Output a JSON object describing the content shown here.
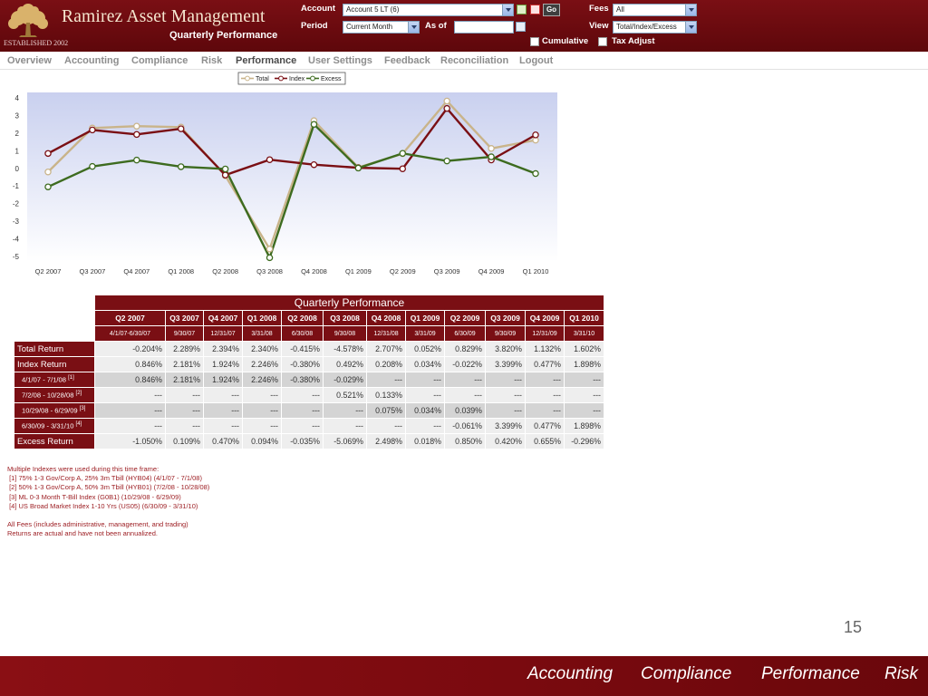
{
  "header": {
    "brand": "Ramirez Asset Management",
    "established": "ESTABLISHED 2002",
    "subtitle": "Quarterly Performance",
    "account_label": "Account",
    "account_value": "Account 5 LT (6)",
    "period_label": "Period",
    "period_value": "Current Month",
    "as_of_label": "As of",
    "as_of_value": "",
    "go_label": "Go",
    "fees_label": "Fees",
    "fees_value": "All",
    "view_label": "View",
    "view_value": "Total/Index/Excess",
    "cumulative_label": "Cumulative",
    "tax_adjust_label": "Tax Adjust"
  },
  "nav": [
    "Overview",
    "Accounting",
    "Compliance",
    "Risk",
    "Performance",
    "User Settings",
    "Feedback",
    "Reconciliation",
    "Logout"
  ],
  "chart_data": {
    "type": "line",
    "categories": [
      "Q2 2007",
      "Q3 2007",
      "Q4 2007",
      "Q1 2008",
      "Q2 2008",
      "Q3 2008",
      "Q4 2008",
      "Q1 2009",
      "Q2 2009",
      "Q3 2009",
      "Q4 2009",
      "Q1 2010"
    ],
    "y_ticks": [
      "4",
      "3",
      "2",
      "1",
      "0",
      "-1",
      "-2",
      "-3",
      "-4",
      "-5"
    ],
    "ylim": [
      -5,
      4
    ],
    "legend_position": "top-center",
    "grid": false,
    "series": [
      {
        "name": "Total",
        "color": "#c9b48a",
        "values": [
          -0.204,
          2.289,
          2.394,
          2.34,
          -0.415,
          -4.578,
          2.707,
          0.052,
          0.829,
          3.82,
          1.132,
          1.602
        ]
      },
      {
        "name": "Index",
        "color": "#7a0f14",
        "values": [
          0.846,
          2.181,
          1.924,
          2.246,
          -0.38,
          0.492,
          0.208,
          0.034,
          -0.022,
          3.399,
          0.477,
          1.898
        ]
      },
      {
        "name": "Excess",
        "color": "#3d6b1f",
        "values": [
          -1.05,
          0.109,
          0.47,
          0.094,
          -0.035,
          -5.069,
          2.498,
          0.018,
          0.85,
          0.42,
          0.655,
          -0.296
        ]
      }
    ]
  },
  "table": {
    "caption": "Quarterly Performance",
    "quarters": [
      "Q2 2007",
      "Q3 2007",
      "Q4 2007",
      "Q1 2008",
      "Q2 2008",
      "Q3 2008",
      "Q4 2008",
      "Q1 2009",
      "Q2 2009",
      "Q3 2009",
      "Q4 2009",
      "Q1 2010"
    ],
    "dates": [
      "4/1/07-6/30/07",
      "9/30/07",
      "12/31/07",
      "3/31/08",
      "6/30/08",
      "9/30/08",
      "12/31/08",
      "3/31/09",
      "6/30/09",
      "9/30/09",
      "12/31/09",
      "3/31/10"
    ],
    "rows": [
      {
        "label": "Total Return",
        "note": "",
        "sub": false,
        "shade": "light",
        "values": [
          "-0.204%",
          "2.289%",
          "2.394%",
          "2.340%",
          "-0.415%",
          "-4.578%",
          "2.707%",
          "0.052%",
          "0.829%",
          "3.820%",
          "1.132%",
          "1.602%"
        ]
      },
      {
        "label": "Index Return",
        "note": "",
        "sub": false,
        "shade": "light",
        "values": [
          "0.846%",
          "2.181%",
          "1.924%",
          "2.246%",
          "-0.380%",
          "0.492%",
          "0.208%",
          "0.034%",
          "-0.022%",
          "3.399%",
          "0.477%",
          "1.898%"
        ]
      },
      {
        "label": "4/1/07 - 7/1/08 ",
        "note": "[1]",
        "sub": true,
        "shade": "dark",
        "values": [
          "0.846%",
          "2.181%",
          "1.924%",
          "2.246%",
          "-0.380%",
          "-0.029%",
          "---",
          "---",
          "---",
          "---",
          "---",
          "---"
        ]
      },
      {
        "label": "7/2/08 - 10/28/08 ",
        "note": "[2]",
        "sub": true,
        "shade": "light",
        "values": [
          "---",
          "---",
          "---",
          "---",
          "---",
          "0.521%",
          "0.133%",
          "---",
          "---",
          "---",
          "---",
          "---"
        ]
      },
      {
        "label": "10/29/08 - 6/29/09 ",
        "note": "[3]",
        "sub": true,
        "shade": "dark",
        "values": [
          "---",
          "---",
          "---",
          "---",
          "---",
          "---",
          "0.075%",
          "0.034%",
          "0.039%",
          "---",
          "---",
          "---"
        ]
      },
      {
        "label": "6/30/09 - 3/31/10 ",
        "note": "[4]",
        "sub": true,
        "shade": "light",
        "values": [
          "---",
          "---",
          "---",
          "---",
          "---",
          "---",
          "---",
          "---",
          "-0.061%",
          "3.399%",
          "0.477%",
          "1.898%"
        ]
      },
      {
        "label": "Excess Return",
        "note": "",
        "sub": false,
        "shade": "light",
        "values": [
          "-1.050%",
          "0.109%",
          "0.470%",
          "0.094%",
          "-0.035%",
          "-5.069%",
          "2.498%",
          "0.018%",
          "0.850%",
          "0.420%",
          "0.655%",
          "-0.296%"
        ]
      }
    ]
  },
  "notes": {
    "intro": "Multiple Indexes were used during this time frame:",
    "indexes": [
      " [1] 75% 1-3 Gov/Corp A, 25% 3m Tbill (HYB04) (4/1/07 - 7/1/08)",
      " [2] 50% 1-3 Gov/Corp A, 50% 3m Tbill (HYB01) (7/2/08 - 10/28/08)",
      " [3] ML 0-3 Month T-Bill Index (G0B1) (10/29/08 - 6/29/09)",
      " [4] US Broad Market Index 1-10 Yrs (US05) (6/30/09 - 3/31/10)"
    ],
    "fees": "All Fees (includes administrative, management, and trading)",
    "returns": "Returns are actual and have not been annualized."
  },
  "page_number": "15",
  "footer": [
    "Accounting",
    "Compliance",
    "Performance",
    "Risk"
  ]
}
